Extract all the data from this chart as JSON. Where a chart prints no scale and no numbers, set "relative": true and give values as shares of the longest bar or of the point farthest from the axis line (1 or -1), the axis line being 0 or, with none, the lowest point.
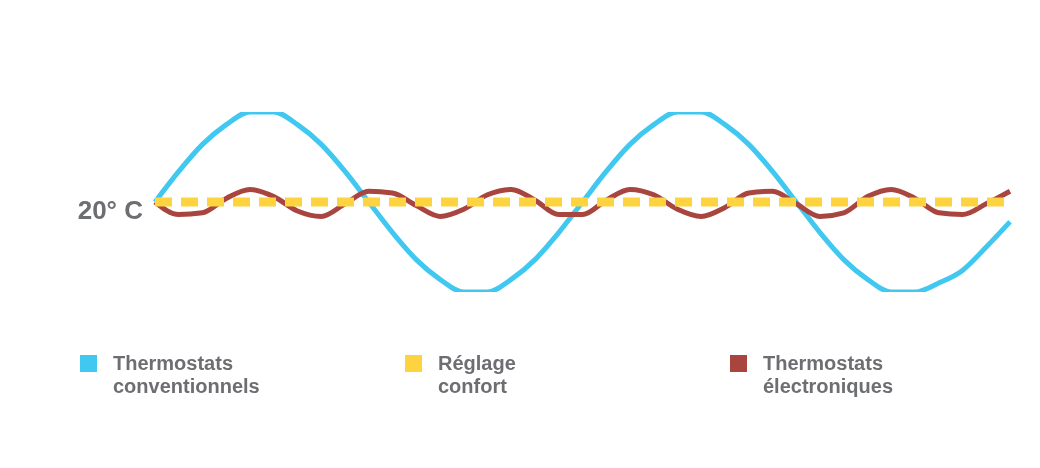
{
  "chart_data": {
    "type": "line",
    "relative": true,
    "categories": [
      null,
      null,
      null,
      null,
      null,
      null,
      null,
      null,
      null,
      null,
      null,
      null,
      null,
      null,
      null,
      null,
      null,
      null,
      null,
      null,
      null,
      null,
      null,
      null,
      null,
      null,
      null,
      null,
      null,
      null,
      null,
      null,
      null,
      null,
      null,
      null,
      null
    ],
    "series": [
      {
        "name": "Thermostats conventionnels",
        "color": "#40c8f0",
        "line_style": "solid",
        "values": [
          0.5,
          0.67,
          0.82,
          0.93,
          1,
          1,
          0.93,
          0.82,
          0.67,
          0.5,
          0.33,
          0.18,
          0.07,
          0,
          0,
          0.07,
          0.18,
          0.33,
          0.5,
          0.67,
          0.82,
          0.93,
          1,
          1,
          0.93,
          0.82,
          0.67,
          0.5,
          0.33,
          0.18,
          0.07,
          0,
          0,
          0.05,
          0.12,
          0.25,
          0.39
        ]
      },
      {
        "name": "Réglage confort",
        "color": "#fdd43f",
        "line_style": "dashed",
        "values": [
          0.5,
          0.5,
          0.5,
          0.5,
          0.5,
          0.5,
          0.5,
          0.5,
          0.5,
          0.5,
          0.5,
          0.5,
          0.5,
          0.5,
          0.5,
          0.5,
          0.5,
          0.5,
          0.5,
          0.5,
          0.5,
          0.5,
          0.5,
          0.5,
          0.5,
          0.5,
          0.5,
          0.5,
          0.5,
          0.5,
          0.5,
          0.5,
          0.5,
          0.5,
          0.5,
          0.5,
          0.5
        ]
      },
      {
        "name": "Thermostats électroniques",
        "color": "#a8453f",
        "line_style": "solid",
        "values": [
          0.5,
          0.43,
          0.44,
          0.52,
          0.57,
          0.53,
          0.45,
          0.42,
          0.49,
          0.56,
          0.55,
          0.48,
          0.42,
          0.46,
          0.54,
          0.57,
          0.51,
          0.43,
          0.43,
          0.51,
          0.57,
          0.54,
          0.46,
          0.42,
          0.47,
          0.55,
          0.56,
          0.49,
          0.42,
          0.44,
          0.53,
          0.57,
          0.52,
          0.44,
          0.43,
          0.49,
          0.56
        ]
      }
    ],
    "annotations": [
      "20° C"
    ],
    "legend": "bottom",
    "marker": "none",
    "grid": false
  }
}
